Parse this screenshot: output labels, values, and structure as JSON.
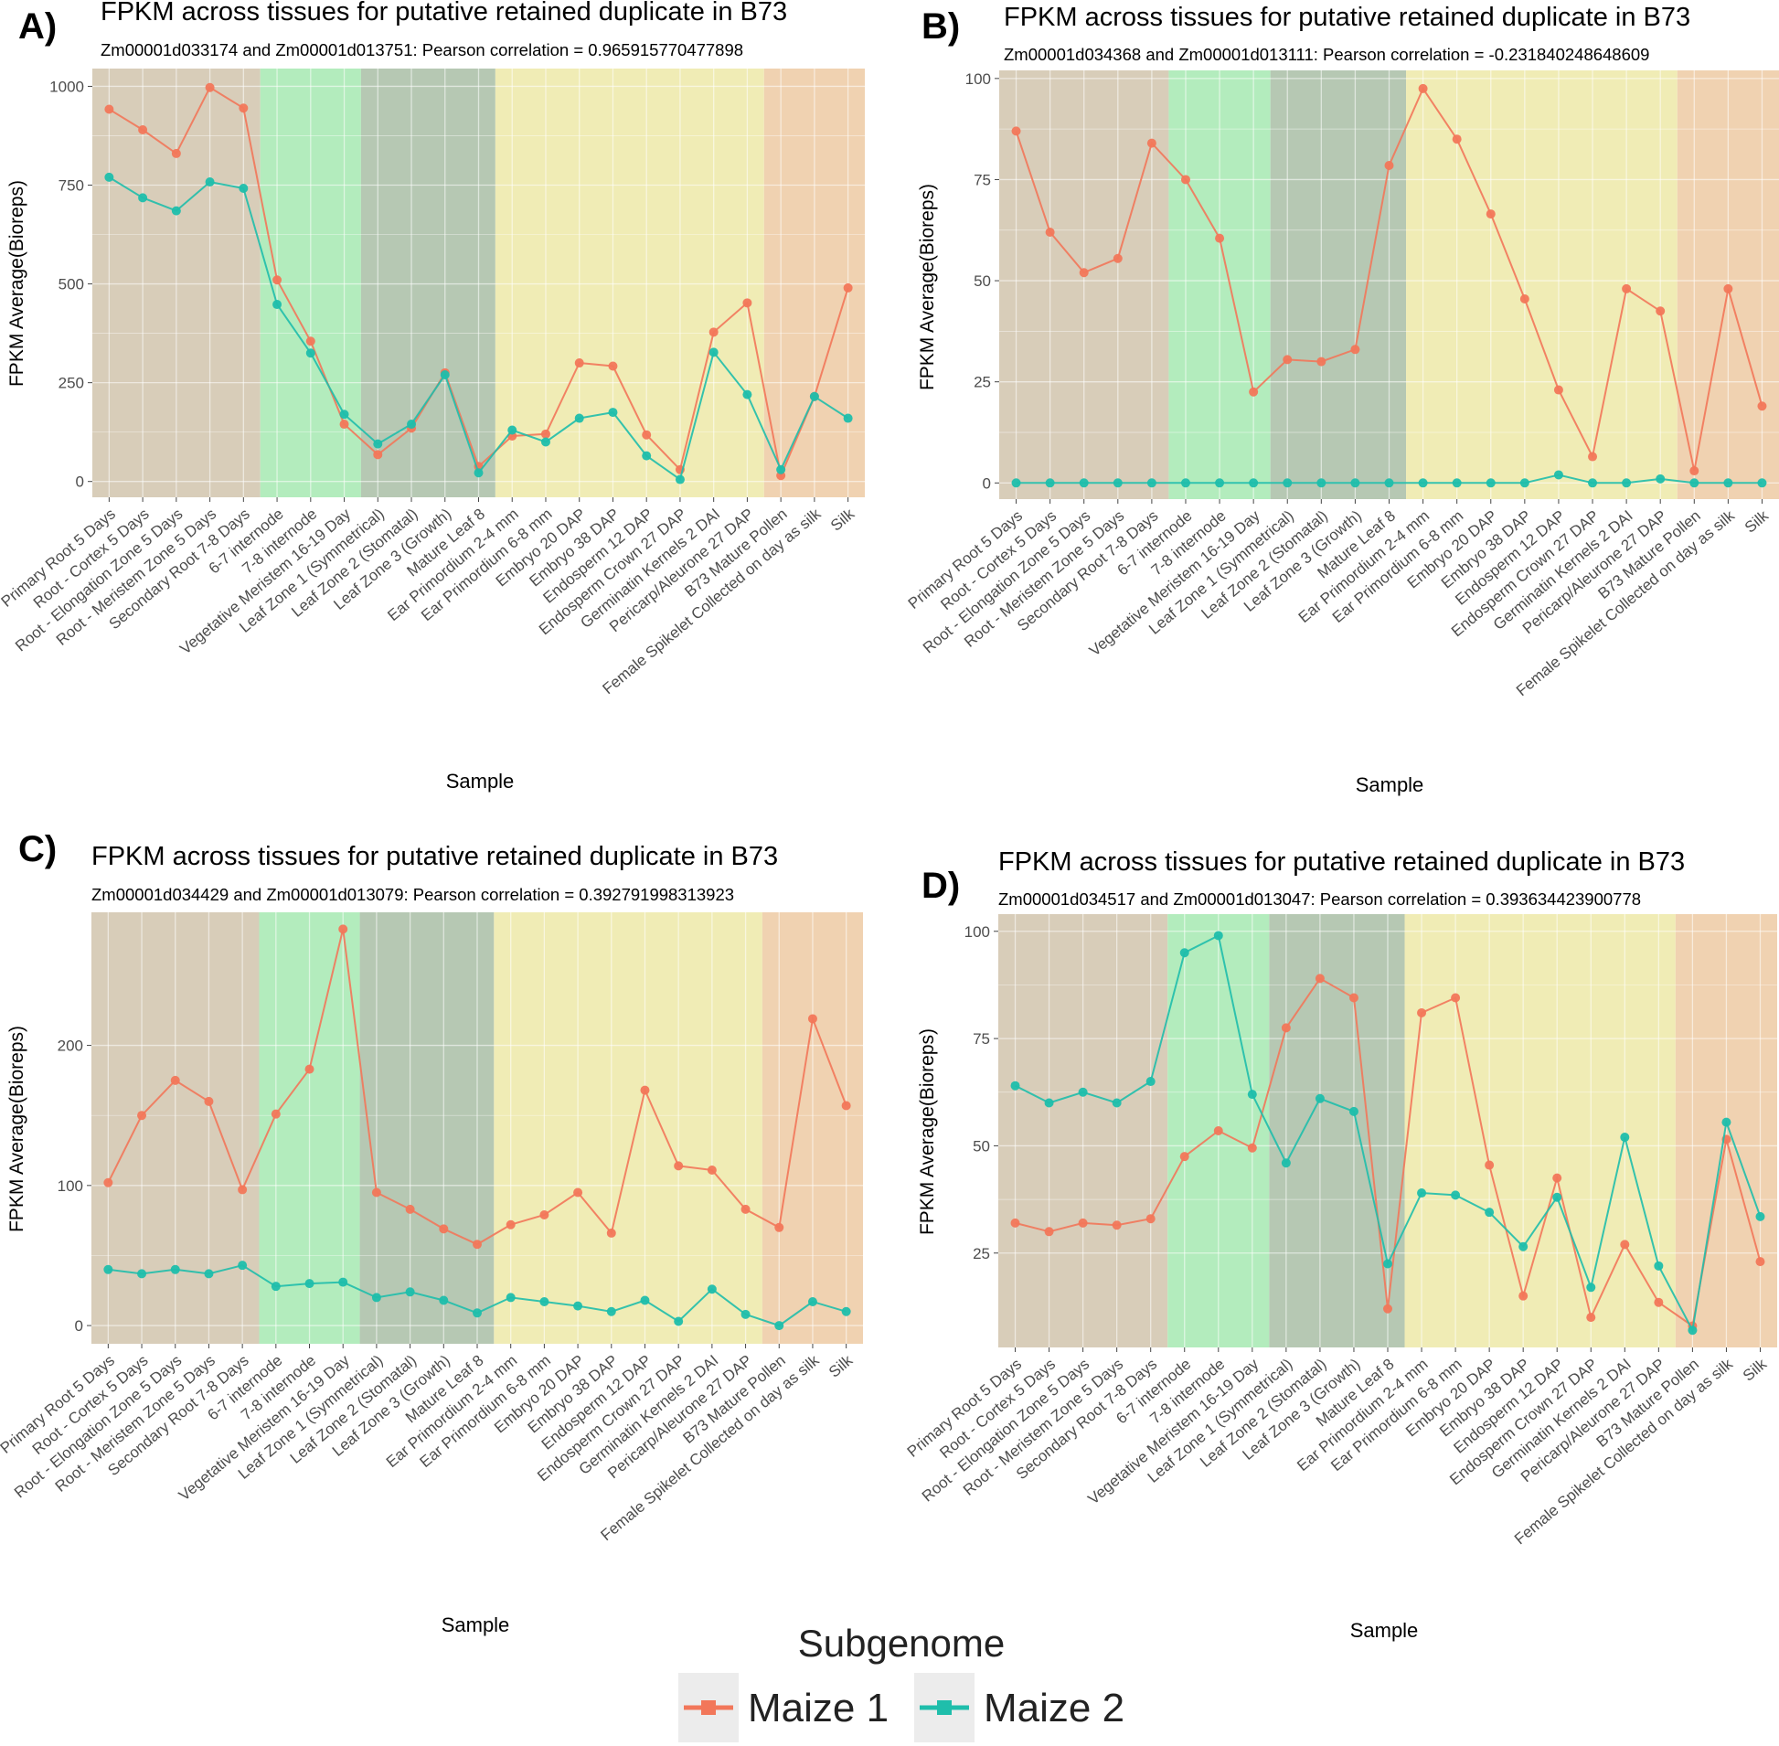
{
  "samples": [
    "Primary Root 5 Days",
    "Root - Cortex 5 Days",
    "Root - Elongation Zone 5 Days",
    "Root - Meristem Zone 5 Days",
    "Secondary Root 7-8 Days",
    "6-7 internode",
    "7-8 internode",
    "Vegetative Meristem 16-19 Day",
    "Leaf Zone 1 (Symmetrical)",
    "Leaf Zone 2 (Stomatal)",
    "Leaf Zone 3 (Growth)",
    "Mature Leaf 8",
    "Ear Primordium 2-4 mm",
    "Ear Primordium 6-8 mm",
    "Embryo 20 DAP",
    "Embryo 38 DAP",
    "Endosperm 12 DAP",
    "Endosperm Crown 27 DAP",
    "Germinatin Kernels 2 DAI",
    "Pericarp/Aleurone 27 DAP",
    "B73 Mature Pollen",
    "Female Spikelet Collected on day as silk",
    "Silk"
  ],
  "bands": [
    {
      "from": 0,
      "to": 4,
      "color": "#d8cdb9"
    },
    {
      "from": 5,
      "to": 7,
      "color": "#b3ecbd"
    },
    {
      "from": 8,
      "to": 11,
      "color": "#b6c8b3"
    },
    {
      "from": 12,
      "to": 19,
      "color": "#f0ecb5"
    },
    {
      "from": 20,
      "to": 22,
      "color": "#f0d2b1"
    }
  ],
  "colors": {
    "maize1": "#f2775a",
    "maize2": "#1fbeab"
  },
  "legend": {
    "title": "Subgenome",
    "items": [
      "Maize 1",
      "Maize 2"
    ]
  },
  "chart_data": [
    {
      "panel": "A)",
      "type": "line",
      "title": "FPKM across tissues for putative retained duplicate in B73",
      "subtitle": "Zm00001d033174 and Zm00001d013751: Pearson correlation = 0.965915770477898",
      "xlabel": "Sample",
      "ylabel": "FPKM Average(Bioreps)",
      "ylim": [
        -40,
        1045
      ],
      "yticks": [
        0,
        250,
        500,
        750,
        1000
      ],
      "series": [
        {
          "name": "Maize 1",
          "values": [
            942,
            890,
            830,
            997,
            945,
            510,
            355,
            145,
            68,
            135,
            275,
            38,
            115,
            120,
            300,
            292,
            118,
            30,
            378,
            452,
            15,
            215,
            490
          ]
        },
        {
          "name": "Maize 2",
          "values": [
            770,
            718,
            685,
            758,
            742,
            448,
            325,
            170,
            95,
            145,
            270,
            22,
            130,
            100,
            160,
            175,
            65,
            5,
            327,
            220,
            30,
            215,
            160
          ]
        }
      ]
    },
    {
      "panel": "B)",
      "type": "line",
      "title": "FPKM across tissues for putative retained duplicate in B73",
      "subtitle": "Zm00001d034368 and Zm00001d013111: Pearson correlation = -0.231840248648609",
      "xlabel": "Sample",
      "ylabel": "FPKM Average(Bioreps)",
      "ylim": [
        -4,
        102
      ],
      "yticks": [
        0,
        25,
        50,
        75,
        100
      ],
      "series": [
        {
          "name": "Maize 1",
          "values": [
            87,
            62,
            52,
            55.5,
            84,
            75,
            60.5,
            22.5,
            30.5,
            30,
            33,
            78.5,
            97.5,
            85,
            66.5,
            45.5,
            23,
            6.5,
            48,
            42.5,
            3,
            48,
            19
          ]
        },
        {
          "name": "Maize 2",
          "values": [
            0,
            0,
            0,
            0,
            0,
            0,
            0,
            0,
            0,
            0,
            0,
            0,
            0,
            0,
            0,
            0,
            2,
            0,
            0,
            1,
            0,
            0,
            0
          ]
        }
      ]
    },
    {
      "panel": "C)",
      "type": "line",
      "title": "FPKM across tissues for putative retained duplicate in B73",
      "subtitle": "Zm00001d034429 and Zm00001d013079: Pearson correlation = 0.392791998313923",
      "xlabel": "Sample",
      "ylabel": "FPKM Average(Bioreps)",
      "ylim": [
        -13,
        295
      ],
      "yticks": [
        0,
        100,
        200
      ],
      "series": [
        {
          "name": "Maize 1",
          "values": [
            102,
            150,
            175,
            160,
            97,
            151,
            183,
            283,
            95,
            83,
            69,
            58,
            72,
            79,
            95,
            66,
            168,
            114,
            111,
            83,
            70,
            219,
            157
          ]
        },
        {
          "name": "Maize 2",
          "values": [
            40,
            37,
            40,
            37,
            43,
            28,
            30,
            31,
            20,
            24,
            18,
            9,
            20,
            17,
            14,
            10,
            18,
            3,
            26,
            8,
            0,
            17,
            10
          ]
        }
      ]
    },
    {
      "panel": "D)",
      "type": "line",
      "title": "FPKM across tissues for putative retained duplicate in B73",
      "subtitle": "Zm00001d034517 and Zm00001d013047: Pearson correlation = 0.393634423900778",
      "xlabel": "Sample",
      "ylabel": "FPKM Average(Bioreps)",
      "ylim": [
        3,
        104
      ],
      "yticks": [
        25,
        50,
        75,
        100
      ],
      "series": [
        {
          "name": "Maize 1",
          "values": [
            32,
            30,
            32,
            31.5,
            33,
            47.5,
            53.5,
            49.5,
            77.5,
            89,
            84.5,
            12,
            81,
            84.5,
            45.5,
            15,
            42.5,
            10,
            27,
            13.5,
            8,
            51.5,
            23
          ]
        },
        {
          "name": "Maize 2",
          "values": [
            64,
            60,
            62.5,
            60,
            65,
            95,
            99,
            62,
            46,
            61,
            58,
            22.5,
            39,
            38.5,
            34.5,
            26.5,
            38,
            17,
            52,
            22,
            7,
            55.5,
            33.5
          ]
        }
      ]
    }
  ]
}
